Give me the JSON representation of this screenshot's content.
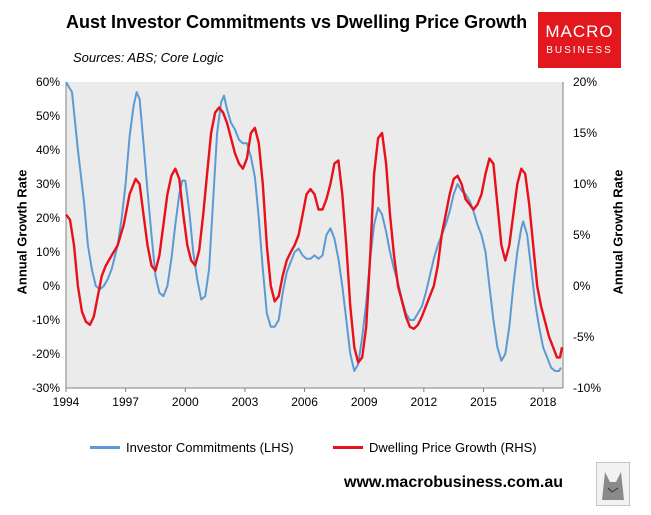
{
  "header": {
    "title": "Aust Investor Commitments vs Dwelling Price Growth",
    "sources": "Sources: ABS; Core Logic"
  },
  "logo": {
    "line1": "MACRO",
    "line2": "BUSINESS",
    "color": "#e3181f"
  },
  "footer": {
    "website": "www.macrobusiness.com.au"
  },
  "chart_data": {
    "type": "line",
    "ylabel_left": "Annual Growth Rate",
    "ylabel_right": "Annual Growth Rate",
    "ylim_left": [
      -30,
      60
    ],
    "ylim_right": [
      -10,
      20
    ],
    "xlim": [
      1994,
      2019
    ],
    "x_ticks": [
      1994,
      1997,
      2000,
      2003,
      2006,
      2009,
      2012,
      2015,
      2018
    ],
    "left_ticks": [
      "-30%",
      "-20%",
      "-10%",
      "0%",
      "10%",
      "20%",
      "30%",
      "40%",
      "50%",
      "60%"
    ],
    "right_ticks": [
      "-10%",
      "-5%",
      "0%",
      "5%",
      "10%",
      "15%",
      "20%"
    ],
    "grid": false,
    "legend_position": "bottom",
    "background": "#ebebeb",
    "series": [
      {
        "name": "Investor Commitments (LHS)",
        "axis": "left",
        "color": "#5b9bd5",
        "points": [
          [
            1994.0,
            60
          ],
          [
            1994.3,
            57
          ],
          [
            1994.6,
            40
          ],
          [
            1994.9,
            25
          ],
          [
            1995.1,
            12
          ],
          [
            1995.3,
            5
          ],
          [
            1995.5,
            0
          ],
          [
            1995.7,
            -1
          ],
          [
            1995.9,
            0
          ],
          [
            1996.1,
            2
          ],
          [
            1996.3,
            5
          ],
          [
            1996.6,
            12
          ],
          [
            1996.8,
            20
          ],
          [
            1997.0,
            30
          ],
          [
            1997.2,
            44
          ],
          [
            1997.4,
            53
          ],
          [
            1997.55,
            57
          ],
          [
            1997.7,
            55
          ],
          [
            1997.9,
            42
          ],
          [
            1998.1,
            28
          ],
          [
            1998.3,
            15
          ],
          [
            1998.5,
            3
          ],
          [
            1998.7,
            -2
          ],
          [
            1998.9,
            -3
          ],
          [
            1999.1,
            0
          ],
          [
            1999.3,
            8
          ],
          [
            1999.5,
            18
          ],
          [
            1999.7,
            27
          ],
          [
            1999.85,
            31
          ],
          [
            2000.0,
            31
          ],
          [
            2000.2,
            22
          ],
          [
            2000.4,
            10
          ],
          [
            2000.6,
            2
          ],
          [
            2000.8,
            -4
          ],
          [
            2001.0,
            -3
          ],
          [
            2001.2,
            5
          ],
          [
            2001.4,
            25
          ],
          [
            2001.6,
            45
          ],
          [
            2001.8,
            54
          ],
          [
            2001.95,
            56
          ],
          [
            2002.1,
            52
          ],
          [
            2002.3,
            48
          ],
          [
            2002.5,
            46
          ],
          [
            2002.7,
            43
          ],
          [
            2002.9,
            42
          ],
          [
            2003.1,
            42
          ],
          [
            2003.3,
            38
          ],
          [
            2003.5,
            32
          ],
          [
            2003.7,
            20
          ],
          [
            2003.9,
            5
          ],
          [
            2004.1,
            -8
          ],
          [
            2004.3,
            -12
          ],
          [
            2004.5,
            -12
          ],
          [
            2004.7,
            -10
          ],
          [
            2004.9,
            -2
          ],
          [
            2005.1,
            4
          ],
          [
            2005.3,
            7
          ],
          [
            2005.5,
            10
          ],
          [
            2005.7,
            11
          ],
          [
            2005.9,
            9
          ],
          [
            2006.1,
            8
          ],
          [
            2006.3,
            8
          ],
          [
            2006.5,
            9
          ],
          [
            2006.7,
            8
          ],
          [
            2006.9,
            9
          ],
          [
            2007.1,
            15
          ],
          [
            2007.3,
            17
          ],
          [
            2007.5,
            14
          ],
          [
            2007.7,
            8
          ],
          [
            2007.9,
            0
          ],
          [
            2008.1,
            -10
          ],
          [
            2008.3,
            -20
          ],
          [
            2008.5,
            -25
          ],
          [
            2008.7,
            -23
          ],
          [
            2008.9,
            -15
          ],
          [
            2009.1,
            -5
          ],
          [
            2009.3,
            8
          ],
          [
            2009.5,
            18
          ],
          [
            2009.7,
            23
          ],
          [
            2009.9,
            21
          ],
          [
            2010.1,
            16
          ],
          [
            2010.3,
            10
          ],
          [
            2010.5,
            5
          ],
          [
            2010.7,
            1
          ],
          [
            2010.9,
            -4
          ],
          [
            2011.1,
            -8
          ],
          [
            2011.3,
            -10
          ],
          [
            2011.5,
            -10
          ],
          [
            2011.7,
            -8
          ],
          [
            2011.9,
            -6
          ],
          [
            2012.1,
            -2
          ],
          [
            2012.3,
            3
          ],
          [
            2012.5,
            8
          ],
          [
            2012.7,
            12
          ],
          [
            2012.9,
            15
          ],
          [
            2013.1,
            18
          ],
          [
            2013.3,
            22
          ],
          [
            2013.5,
            27
          ],
          [
            2013.7,
            30
          ],
          [
            2013.9,
            28
          ],
          [
            2014.1,
            27
          ],
          [
            2014.3,
            25
          ],
          [
            2014.5,
            22
          ],
          [
            2014.7,
            18
          ],
          [
            2014.9,
            15
          ],
          [
            2015.1,
            10
          ],
          [
            2015.3,
            0
          ],
          [
            2015.5,
            -10
          ],
          [
            2015.7,
            -18
          ],
          [
            2015.9,
            -22
          ],
          [
            2016.1,
            -20
          ],
          [
            2016.3,
            -12
          ],
          [
            2016.5,
            0
          ],
          [
            2016.7,
            10
          ],
          [
            2016.9,
            17
          ],
          [
            2017.0,
            19
          ],
          [
            2017.2,
            15
          ],
          [
            2017.4,
            5
          ],
          [
            2017.6,
            -5
          ],
          [
            2017.8,
            -12
          ],
          [
            2018.0,
            -18
          ],
          [
            2018.2,
            -21
          ],
          [
            2018.4,
            -24
          ],
          [
            2018.6,
            -25
          ],
          [
            2018.8,
            -25
          ],
          [
            2018.9,
            -24
          ]
        ]
      },
      {
        "name": "Dwelling Price Growth (RHS)",
        "axis": "right",
        "color": "#e8101a",
        "points": [
          [
            1994.0,
            7
          ],
          [
            1994.2,
            6.5
          ],
          [
            1994.4,
            4
          ],
          [
            1994.6,
            0
          ],
          [
            1994.8,
            -2.5
          ],
          [
            1995.0,
            -3.5
          ],
          [
            1995.2,
            -3.8
          ],
          [
            1995.4,
            -3
          ],
          [
            1995.6,
            -1
          ],
          [
            1995.8,
            1
          ],
          [
            1996.0,
            2
          ],
          [
            1996.3,
            3
          ],
          [
            1996.6,
            4
          ],
          [
            1996.9,
            6
          ],
          [
            1997.2,
            9
          ],
          [
            1997.5,
            10.5
          ],
          [
            1997.7,
            10
          ],
          [
            1997.9,
            7
          ],
          [
            1998.1,
            4
          ],
          [
            1998.3,
            2
          ],
          [
            1998.5,
            1.5
          ],
          [
            1998.7,
            3
          ],
          [
            1998.9,
            6
          ],
          [
            1999.1,
            9
          ],
          [
            1999.3,
            10.8
          ],
          [
            1999.5,
            11.5
          ],
          [
            1999.7,
            10.5
          ],
          [
            1999.9,
            7
          ],
          [
            2000.1,
            4
          ],
          [
            2000.3,
            2.5
          ],
          [
            2000.5,
            2
          ],
          [
            2000.7,
            3.5
          ],
          [
            2000.9,
            7
          ],
          [
            2001.1,
            11
          ],
          [
            2001.3,
            15
          ],
          [
            2001.5,
            17
          ],
          [
            2001.7,
            17.5
          ],
          [
            2001.9,
            17
          ],
          [
            2002.1,
            16
          ],
          [
            2002.3,
            14.5
          ],
          [
            2002.5,
            13
          ],
          [
            2002.7,
            12
          ],
          [
            2002.9,
            11.5
          ],
          [
            2003.1,
            12.5
          ],
          [
            2003.3,
            15
          ],
          [
            2003.5,
            15.5
          ],
          [
            2003.7,
            14
          ],
          [
            2003.9,
            10
          ],
          [
            2004.1,
            4
          ],
          [
            2004.3,
            0
          ],
          [
            2004.5,
            -1.5
          ],
          [
            2004.7,
            -1
          ],
          [
            2004.9,
            1
          ],
          [
            2005.1,
            2.5
          ],
          [
            2005.3,
            3.3
          ],
          [
            2005.5,
            4
          ],
          [
            2005.7,
            5
          ],
          [
            2005.9,
            7
          ],
          [
            2006.1,
            9
          ],
          [
            2006.3,
            9.5
          ],
          [
            2006.5,
            9
          ],
          [
            2006.7,
            7.5
          ],
          [
            2006.9,
            7.5
          ],
          [
            2007.1,
            8.5
          ],
          [
            2007.3,
            10
          ],
          [
            2007.5,
            12
          ],
          [
            2007.7,
            12.3
          ],
          [
            2007.9,
            9
          ],
          [
            2008.1,
            4
          ],
          [
            2008.3,
            -2
          ],
          [
            2008.5,
            -6
          ],
          [
            2008.7,
            -7.5
          ],
          [
            2008.9,
            -7
          ],
          [
            2009.1,
            -4
          ],
          [
            2009.3,
            3
          ],
          [
            2009.5,
            11
          ],
          [
            2009.7,
            14.5
          ],
          [
            2009.9,
            15
          ],
          [
            2010.1,
            12
          ],
          [
            2010.3,
            7
          ],
          [
            2010.5,
            3
          ],
          [
            2010.7,
            0
          ],
          [
            2010.9,
            -1.5
          ],
          [
            2011.1,
            -3
          ],
          [
            2011.3,
            -4
          ],
          [
            2011.5,
            -4.2
          ],
          [
            2011.7,
            -3.8
          ],
          [
            2011.9,
            -3
          ],
          [
            2012.1,
            -2
          ],
          [
            2012.3,
            -1
          ],
          [
            2012.5,
            0
          ],
          [
            2012.7,
            2
          ],
          [
            2012.9,
            5
          ],
          [
            2013.1,
            7
          ],
          [
            2013.3,
            9
          ],
          [
            2013.5,
            10.5
          ],
          [
            2013.7,
            10.8
          ],
          [
            2013.9,
            10
          ],
          [
            2014.1,
            8.5
          ],
          [
            2014.3,
            8
          ],
          [
            2014.5,
            7.5
          ],
          [
            2014.7,
            8
          ],
          [
            2014.9,
            9
          ],
          [
            2015.1,
            11
          ],
          [
            2015.3,
            12.5
          ],
          [
            2015.5,
            12
          ],
          [
            2015.7,
            8
          ],
          [
            2015.9,
            4
          ],
          [
            2016.1,
            2.5
          ],
          [
            2016.3,
            4
          ],
          [
            2016.5,
            7
          ],
          [
            2016.7,
            10
          ],
          [
            2016.9,
            11.5
          ],
          [
            2017.1,
            11
          ],
          [
            2017.3,
            8
          ],
          [
            2017.5,
            4
          ],
          [
            2017.7,
            0
          ],
          [
            2017.9,
            -2
          ],
          [
            2018.1,
            -3.5
          ],
          [
            2018.3,
            -5
          ],
          [
            2018.5,
            -6
          ],
          [
            2018.7,
            -7
          ],
          [
            2018.85,
            -7
          ],
          [
            2018.95,
            -6
          ]
        ]
      }
    ]
  }
}
